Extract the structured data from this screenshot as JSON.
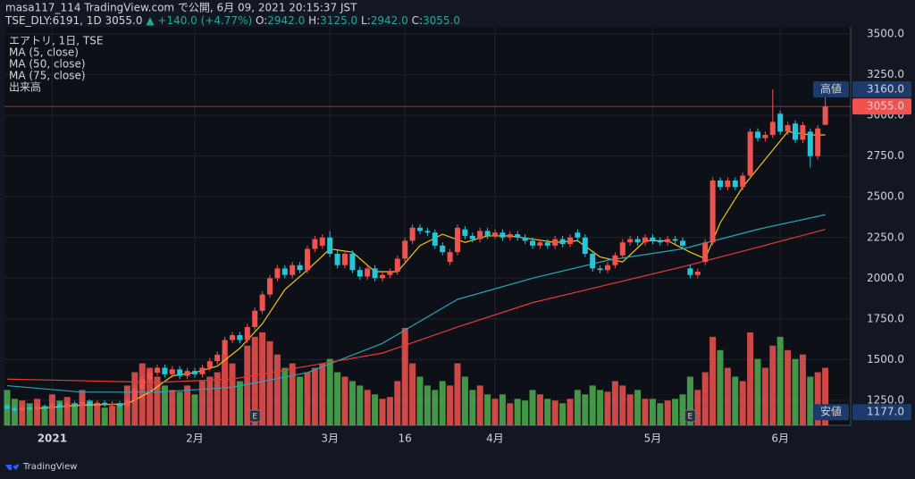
{
  "header": {
    "published": "masa117_114 TradingView.com で公開, 6月 09, 2021 20:15:37 JST",
    "symbol": "TSE_DLY:6191, 1D",
    "price": "3055.0",
    "change": "▲ +140.0 (+4.77%)",
    "ohlc": [
      {
        "label": "O:",
        "value": "2942.0"
      },
      {
        "label": "H:",
        "value": "3125.0"
      },
      {
        "label": "L:",
        "value": "2942.0"
      },
      {
        "label": "C:",
        "value": "3055.0"
      }
    ]
  },
  "chart_data": {
    "type": "candlestick",
    "title": "エアトリ, 1日, TSE",
    "volume_name": "出来高",
    "up_color": "#ef5350",
    "down_color": "#26c6da",
    "volume_up_color": "#ef5350",
    "volume_down_color": "#4caf50",
    "ylim": [
      1096,
      3544
    ],
    "yticks": [
      {
        "value": 1250,
        "label": "1250.0"
      },
      {
        "value": 1500,
        "label": "1500.0"
      },
      {
        "value": 1750,
        "label": "1750.0"
      },
      {
        "value": 2000,
        "label": "2000.0"
      },
      {
        "value": 2250,
        "label": "2250.0"
      },
      {
        "value": 2500,
        "label": "2500.0"
      },
      {
        "value": 2750,
        "label": "2750.0"
      },
      {
        "value": 3000,
        "label": "3000.0"
      },
      {
        "value": 3250,
        "label": "3250.0"
      },
      {
        "value": 3500,
        "label": "3500.0"
      }
    ],
    "xticks": [
      {
        "value": 6,
        "label": "2021"
      },
      {
        "value": 25,
        "label": "2月"
      },
      {
        "value": 43,
        "label": "3月"
      },
      {
        "value": 53,
        "label": "16"
      },
      {
        "value": 65,
        "label": "4月"
      },
      {
        "value": 86,
        "label": "5月"
      },
      {
        "value": 103,
        "label": "6月"
      }
    ],
    "grid": true,
    "open": [
      1215,
      1200,
      1190,
      1205,
      1195,
      1210,
      1200,
      1225,
      1210,
      1230,
      1215,
      1240,
      1225,
      1235,
      1220,
      1230,
      1215,
      1250,
      1320,
      1380,
      1420,
      1450,
      1410,
      1440,
      1400,
      1430,
      1410,
      1450,
      1490,
      1530,
      1620,
      1650,
      1620,
      1700,
      1800,
      1900,
      2000,
      2060,
      2020,
      2080,
      2050,
      2180,
      2200,
      2250,
      2150,
      2080,
      2150,
      2050,
      2010,
      2060,
      2000,
      2020,
      2040,
      2120,
      2230,
      2310,
      2290,
      2280,
      2200,
      2100,
      2160,
      2300,
      2260,
      2240,
      2290,
      2260,
      2280,
      2250,
      2270,
      2250,
      2230,
      2200,
      2220,
      2200,
      2240,
      2210,
      2280,
      2250,
      2150,
      2060,
      2050,
      2080,
      2140,
      2220,
      2240,
      2220,
      2250,
      2230,
      2220,
      2240,
      2230,
      2060,
      2020,
      2100,
      2220,
      2600,
      2560,
      2600,
      2560,
      2630,
      2900,
      2860,
      2880,
      3010,
      2900,
      2950,
      2850,
      2900,
      2750,
      2942
    ],
    "high": [
      1230,
      1215,
      1220,
      1220,
      1225,
      1225,
      1240,
      1240,
      1245,
      1245,
      1255,
      1255,
      1250,
      1250,
      1245,
      1245,
      1270,
      1340,
      1400,
      1440,
      1470,
      1470,
      1460,
      1460,
      1450,
      1450,
      1470,
      1510,
      1550,
      1640,
      1670,
      1670,
      1720,
      1820,
      1920,
      2020,
      2080,
      2080,
      2100,
      2100,
      2200,
      2260,
      2270,
      2290,
      2170,
      2170,
      2170,
      2070,
      2080,
      2080,
      2040,
      2060,
      2140,
      2250,
      2330,
      2330,
      2310,
      2300,
      2220,
      2180,
      2330,
      2320,
      2280,
      2310,
      2310,
      2300,
      2300,
      2290,
      2290,
      2270,
      2250,
      2240,
      2240,
      2260,
      2260,
      2270,
      2300,
      2270,
      2170,
      2080,
      2100,
      2160,
      2240,
      2260,
      2260,
      2270,
      2270,
      2250,
      2260,
      2260,
      2250,
      2080,
      2060,
      2240,
      2620,
      2620,
      2620,
      2620,
      2650,
      2920,
      2920,
      2900,
      3160,
      3030,
      2960,
      2970,
      2960,
      2920,
      2940,
      3125
    ],
    "low": [
      1190,
      1177,
      1180,
      1185,
      1185,
      1190,
      1190,
      1200,
      1200,
      1205,
      1205,
      1215,
      1215,
      1210,
      1210,
      1205,
      1195,
      1230,
      1300,
      1360,
      1400,
      1390,
      1390,
      1380,
      1380,
      1390,
      1390,
      1430,
      1470,
      1510,
      1600,
      1600,
      1600,
      1680,
      1780,
      1880,
      1980,
      2000,
      2000,
      2030,
      2030,
      2160,
      2180,
      2130,
      2060,
      2060,
      2030,
      1990,
      1990,
      1980,
      1980,
      2000,
      2020,
      2100,
      2210,
      2270,
      2260,
      2180,
      2140,
      2080,
      2140,
      2240,
      2220,
      2220,
      2240,
      2240,
      2230,
      2230,
      2230,
      2210,
      2180,
      2180,
      2180,
      2180,
      2190,
      2190,
      2230,
      2130,
      2040,
      2030,
      2030,
      2060,
      2120,
      2200,
      2200,
      2200,
      2210,
      2200,
      2200,
      2210,
      2180,
      2000,
      2000,
      2080,
      2200,
      2540,
      2540,
      2540,
      2540,
      2610,
      2840,
      2840,
      2860,
      2880,
      2880,
      2830,
      2830,
      2680,
      2730,
      2942
    ],
    "close": [
      1200,
      1190,
      1205,
      1195,
      1210,
      1200,
      1225,
      1210,
      1230,
      1215,
      1240,
      1225,
      1235,
      1220,
      1230,
      1215,
      1250,
      1320,
      1380,
      1420,
      1450,
      1410,
      1440,
      1400,
      1430,
      1410,
      1450,
      1490,
      1530,
      1620,
      1650,
      1620,
      1700,
      1800,
      1900,
      2000,
      2060,
      2020,
      2080,
      2050,
      2180,
      2240,
      2250,
      2150,
      2080,
      2150,
      2050,
      2010,
      2060,
      2000,
      2020,
      2040,
      2120,
      2230,
      2310,
      2290,
      2280,
      2200,
      2160,
      2160,
      2310,
      2260,
      2240,
      2290,
      2260,
      2280,
      2250,
      2270,
      2250,
      2230,
      2200,
      2220,
      2200,
      2240,
      2210,
      2250,
      2250,
      2150,
      2060,
      2050,
      2080,
      2140,
      2220,
      2240,
      2220,
      2250,
      2230,
      2220,
      2240,
      2230,
      2200,
      2020,
      2040,
      2220,
      2600,
      2560,
      2600,
      2560,
      2630,
      2900,
      2860,
      2880,
      2960,
      2900,
      2940,
      2850,
      2940,
      2750,
      2920,
      3055
    ],
    "volume_lim": [
      0,
      450
    ],
    "volume": [
      40,
      30,
      28,
      25,
      30,
      22,
      35,
      28,
      32,
      25,
      40,
      28,
      25,
      20,
      22,
      25,
      45,
      60,
      70,
      65,
      55,
      45,
      40,
      38,
      45,
      35,
      50,
      55,
      60,
      80,
      70,
      50,
      90,
      100,
      105,
      95,
      80,
      65,
      70,
      55,
      60,
      65,
      70,
      75,
      60,
      55,
      50,
      45,
      40,
      35,
      30,
      32,
      50,
      110,
      70,
      55,
      45,
      40,
      50,
      45,
      70,
      55,
      40,
      45,
      35,
      30,
      35,
      25,
      30,
      28,
      40,
      35,
      30,
      28,
      25,
      30,
      40,
      35,
      45,
      40,
      38,
      50,
      45,
      35,
      40,
      30,
      30,
      25,
      28,
      30,
      35,
      55,
      40,
      60,
      100,
      85,
      65,
      55,
      50,
      105,
      75,
      65,
      90,
      100,
      85,
      75,
      80,
      55,
      60,
      65
    ],
    "series": [
      {
        "name": "MA (5, close)",
        "color": "#f0c419",
        "x": [
          4,
          10,
          16,
          19,
          22,
          25,
          28,
          31,
          34,
          37,
          40,
          43,
          46,
          49,
          52,
          55,
          58,
          61,
          64,
          67,
          70,
          73,
          76,
          79,
          82,
          85,
          88,
          91,
          93,
          95,
          98,
          101,
          104,
          107,
          109
        ],
        "values": [
          1200,
          1220,
          1228,
          1300,
          1400,
          1420,
          1460,
          1570,
          1720,
          1930,
          2050,
          2180,
          2160,
          2040,
          2040,
          2200,
          2270,
          2220,
          2260,
          2260,
          2240,
          2220,
          2230,
          2130,
          2100,
          2230,
          2230,
          2160,
          2120,
          2340,
          2560,
          2730,
          2900,
          2880,
          2880
        ]
      },
      {
        "name": "MA (50, close)",
        "color": "#26a6b8",
        "x": [
          0,
          10,
          20,
          30,
          40,
          50,
          60,
          70,
          80,
          90,
          100,
          109
        ],
        "values": [
          1340,
          1300,
          1300,
          1330,
          1420,
          1600,
          1870,
          2000,
          2110,
          2180,
          2300,
          2390
        ]
      },
      {
        "name": "MA (75, close)",
        "color": "#e53935",
        "x": [
          0,
          10,
          20,
          30,
          40,
          50,
          60,
          70,
          80,
          90,
          100,
          109
        ],
        "values": [
          1380,
          1370,
          1360,
          1380,
          1460,
          1540,
          1700,
          1850,
          1960,
          2070,
          2190,
          2300
        ]
      }
    ],
    "high_marker": {
      "label": "高値",
      "value": 3160,
      "value_label": "3160.0"
    },
    "last_marker": {
      "value": 3055,
      "value_label": "3055.0"
    },
    "low_marker": {
      "label": "安値",
      "value": 1177,
      "value_label": "1177.0"
    },
    "events": [
      {
        "x": 33,
        "label": "E"
      },
      {
        "x": 91,
        "label": "E"
      }
    ],
    "footer": "TradingView"
  }
}
